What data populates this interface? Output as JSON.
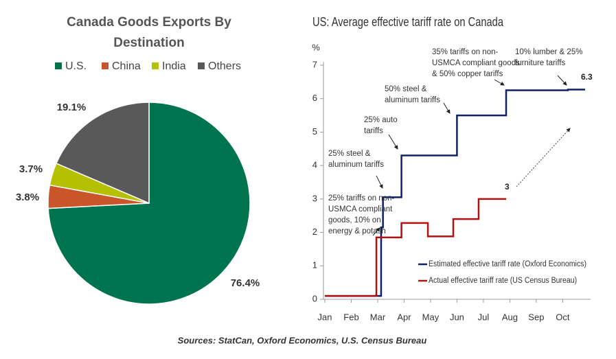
{
  "source": "Sources: StatCan, Oxford Economics, U.S. Census Bureau",
  "chart_data": [
    {
      "type": "pie",
      "title": "Canada Goods Exports By Destination",
      "categories": [
        "U.S.",
        "China",
        "India",
        "Others"
      ],
      "values": [
        76.4,
        3.8,
        3.7,
        19.1
      ],
      "value_labels": [
        "76.4%",
        "3.8%",
        "3.7%",
        "19.1%"
      ],
      "colors": [
        "#00734f",
        "#c9562a",
        "#b4c000",
        "#595959"
      ]
    },
    {
      "type": "line",
      "title": "US: Average effective tariff rate on Canada",
      "y_label": "%",
      "xlim": [
        1,
        10.9
      ],
      "xticks": [
        {
          "value": 1,
          "label": "Jan"
        },
        {
          "value": 2,
          "label": "Feb"
        },
        {
          "value": 3,
          "label": "Mar"
        },
        {
          "value": 4,
          "label": "Apr"
        },
        {
          "value": 5,
          "label": "May"
        },
        {
          "value": 6,
          "label": "Jun"
        },
        {
          "value": 7,
          "label": "Jul"
        },
        {
          "value": 8,
          "label": "Aug"
        },
        {
          "value": 9,
          "label": "Sep"
        },
        {
          "value": 10,
          "label": "Oct"
        }
      ],
      "ylim": [
        0,
        7
      ],
      "yticks": [
        0,
        1,
        2,
        3,
        4,
        5,
        6,
        7
      ],
      "series": [
        {
          "name": "Estimated effective tariff rate (Oxford Economics)",
          "color": "#0f1f6b",
          "end_label": "6.3",
          "x": [
            1,
            3.13,
            3.13,
            3.2,
            3.2,
            3.9,
            3.9,
            6.0,
            6.0,
            7.86,
            7.86,
            10.2,
            10.2,
            10.85
          ],
          "values": [
            0.1,
            0.1,
            2.15,
            2.15,
            3.05,
            3.05,
            4.3,
            4.3,
            5.5,
            5.5,
            6.25,
            6.25,
            6.27,
            6.27
          ]
        },
        {
          "name": "Actual effective tariff rate (US Census Bureau)",
          "color": "#b01010",
          "end_label": "3",
          "x": [
            1,
            2.95,
            2.95,
            3.9,
            3.9,
            4.9,
            4.9,
            5.86,
            5.86,
            6.82,
            6.82,
            7.86
          ],
          "values": [
            0.1,
            0.1,
            1.85,
            1.85,
            2.28,
            2.28,
            1.88,
            1.88,
            2.4,
            2.4,
            3.0,
            3.0
          ]
        }
      ],
      "annotations": [
        [
          "25% tariffs on non-",
          "USMCA compliant",
          "goods, 10% on",
          "energy & potash"
        ],
        [
          "25% steel &",
          "aluminum tariffs"
        ],
        [
          "25% auto",
          "tariffs"
        ],
        [
          "50% steel &",
          "aluminum tariffs"
        ],
        [
          "35% tariffs on non-",
          "USMCA compliant goods",
          "& 50% copper tariffs"
        ],
        [
          "10% lumber & 25%",
          "furniture tariffs"
        ]
      ]
    }
  ]
}
